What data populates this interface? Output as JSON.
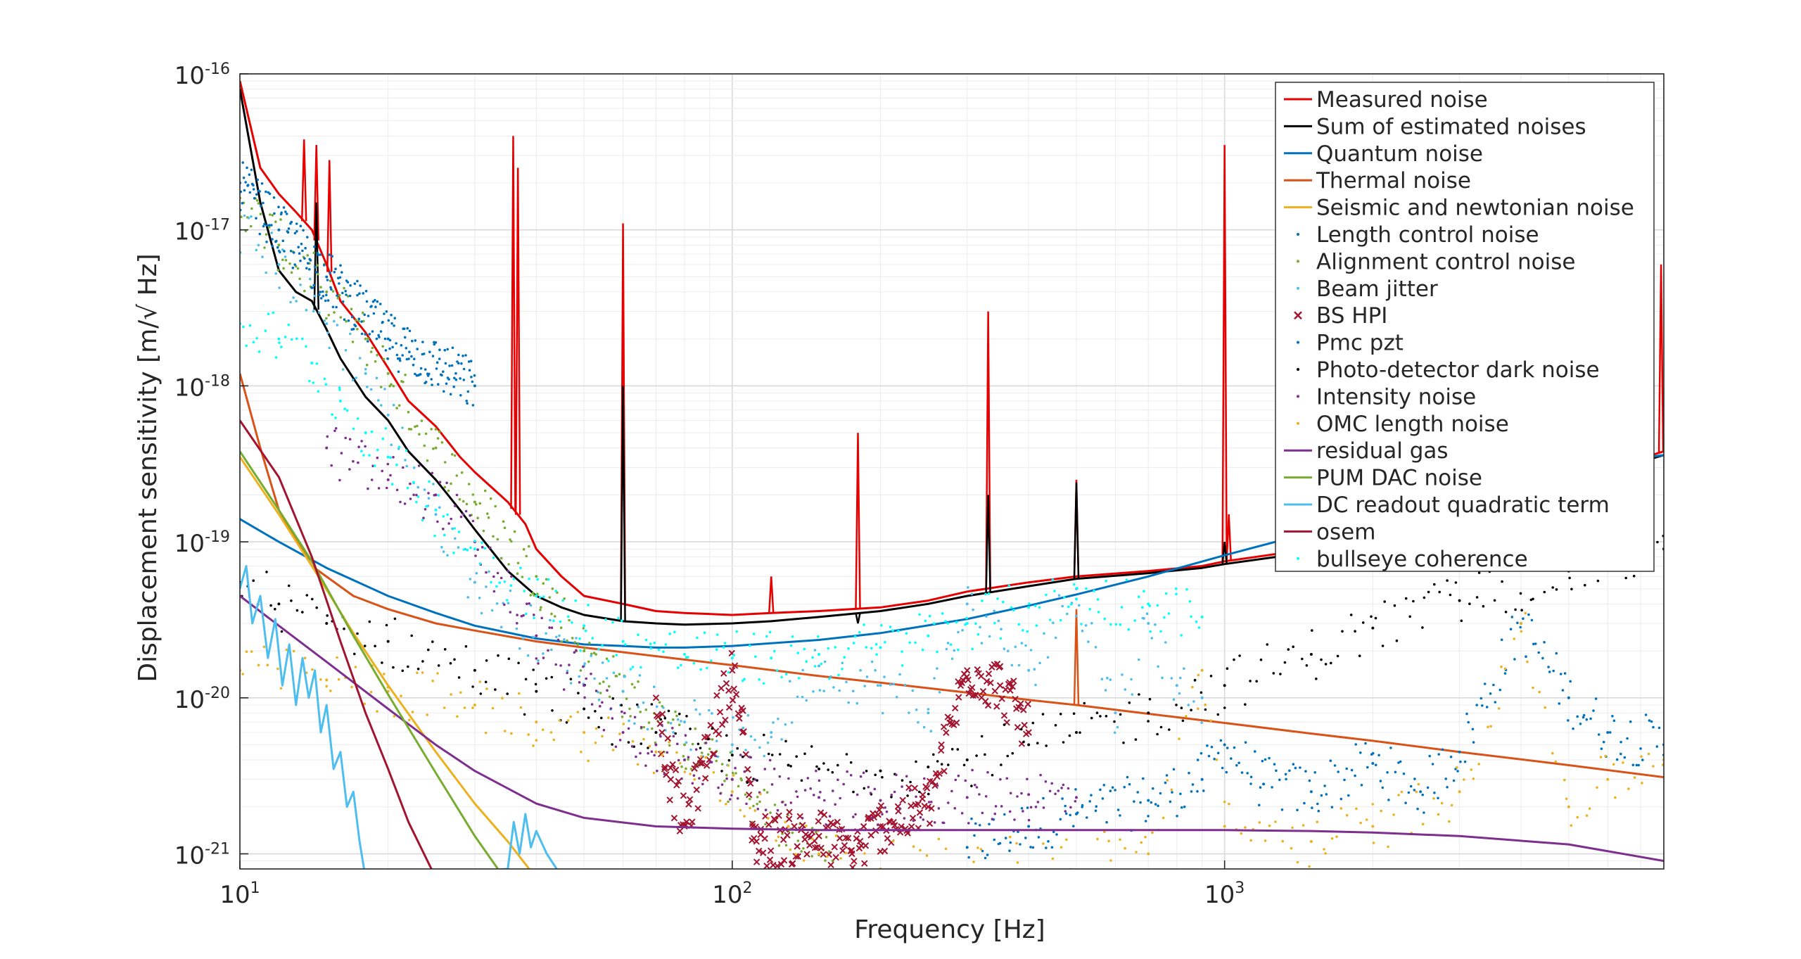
{
  "chart_data": {
    "type": "line",
    "title": "",
    "xlabel": "Frequency [Hz]",
    "ylabel": "Displacement sensitivity [m/√ Hz]",
    "xscale": "log",
    "yscale": "log",
    "xlim": [
      10,
      7800
    ],
    "ylim": [
      8e-22,
      1e-16
    ],
    "grid": true,
    "legend_position": "top-right",
    "x_ticks": [
      {
        "value": 10,
        "base": "10",
        "exp": "1"
      },
      {
        "value": 100,
        "base": "10",
        "exp": "2"
      },
      {
        "value": 1000,
        "base": "10",
        "exp": "3"
      }
    ],
    "y_ticks": [
      {
        "value": 1e-16,
        "base": "10",
        "exp": "-16"
      },
      {
        "value": 1e-17,
        "base": "10",
        "exp": "-17"
      },
      {
        "value": 1e-18,
        "base": "10",
        "exp": "-18"
      },
      {
        "value": 1e-19,
        "base": "10",
        "exp": "-19"
      },
      {
        "value": 1e-20,
        "base": "10",
        "exp": "-20"
      },
      {
        "value": 1e-21,
        "base": "10",
        "exp": "-21"
      }
    ],
    "series": [
      {
        "name": "Measured noise",
        "style": "line",
        "color": "#e60000",
        "x": [
          10,
          11,
          12,
          13,
          14,
          15,
          16,
          18,
          20,
          22,
          25,
          28,
          30,
          35,
          38,
          40,
          45,
          50,
          60,
          70,
          80,
          100,
          120,
          150,
          200,
          250,
          300,
          400,
          500,
          700,
          900,
          1000,
          1500,
          2000,
          3000,
          5000,
          7800
        ],
        "y": [
          9e-17,
          2.5e-17,
          1.7e-17,
          1.3e-17,
          1e-17,
          6e-18,
          3.5e-18,
          2.2e-18,
          1.3e-18,
          8e-19,
          5.5e-19,
          3.5e-19,
          2.8e-19,
          1.8e-19,
          1.3e-19,
          9e-20,
          6e-20,
          4.5e-20,
          4e-20,
          3.6e-20,
          3.5e-20,
          3.4e-20,
          3.5e-20,
          3.6e-20,
          3.8e-20,
          4.2e-20,
          4.8e-20,
          5.5e-20,
          6e-20,
          6.5e-20,
          7e-20,
          7.5e-20,
          9e-20,
          1.1e-19,
          1.6e-19,
          2.5e-19,
          3.8e-19
        ],
        "peaks": [
          [
            13.5,
            3.8e-17
          ],
          [
            14.3,
            3.5e-17
          ],
          [
            15.2,
            2.8e-17
          ],
          [
            35.9,
            4e-17
          ],
          [
            36.7,
            2.5e-17
          ],
          [
            60,
            1.1e-17
          ],
          [
            120,
            6e-20
          ],
          [
            180,
            5e-19
          ],
          [
            331,
            3e-18
          ],
          [
            500,
            2.5e-19
          ],
          [
            1000,
            3.5e-17
          ],
          [
            1020,
            1.5e-19
          ],
          [
            7700,
            6e-18
          ]
        ]
      },
      {
        "name": "Sum of estimated noises",
        "style": "line",
        "color": "#000000",
        "x": [
          10,
          11,
          12,
          13,
          14,
          15,
          16,
          18,
          20,
          22,
          25,
          28,
          30,
          35,
          40,
          45,
          50,
          60,
          70,
          80,
          100,
          120,
          150,
          200,
          250,
          300,
          400,
          500,
          700,
          900,
          1000,
          1500,
          2000,
          3000,
          5000,
          7800
        ],
        "y": [
          8e-17,
          1.5e-17,
          5.5e-18,
          4e-18,
          3.5e-18,
          2.3e-18,
          1.5e-18,
          8.5e-19,
          6e-19,
          3.8e-19,
          2.5e-19,
          1.6e-19,
          1.2e-19,
          6.5e-20,
          4.5e-20,
          3.8e-20,
          3.4e-20,
          3.1e-20,
          3e-20,
          2.95e-20,
          3e-20,
          3.1e-20,
          3.3e-20,
          3.6e-20,
          4e-20,
          4.5e-20,
          5.2e-20,
          5.8e-20,
          6.3e-20,
          6.8e-20,
          7.2e-20,
          8.6e-20,
          1.05e-19,
          1.5e-19,
          2.4e-19,
          3.6e-19
        ],
        "peaks": [
          [
            14.3,
            1.5e-17
          ],
          [
            60,
            1e-18
          ],
          [
            180,
            3e-20
          ],
          [
            331,
            2e-19
          ],
          [
            500,
            2.4e-19
          ],
          [
            1000,
            1e-19
          ]
        ]
      },
      {
        "name": "Quantum noise",
        "style": "line",
        "color": "#0072bd",
        "x": [
          10,
          12,
          15,
          20,
          25,
          30,
          40,
          50,
          60,
          70,
          80,
          100,
          150,
          200,
          300,
          400,
          500,
          700,
          1000,
          1500,
          2000,
          3000,
          5000,
          7800
        ],
        "y": [
          1.4e-19,
          1e-19,
          6.8e-20,
          4.5e-20,
          3.5e-20,
          2.9e-20,
          2.4e-20,
          2.2e-20,
          2.15e-20,
          2.1e-20,
          2.1e-20,
          2.15e-20,
          2.35e-20,
          2.6e-20,
          3.2e-20,
          3.9e-20,
          4.6e-20,
          6e-20,
          8.2e-20,
          1.15e-19,
          1.5e-19,
          2.1e-19,
          3e-19,
          3.6e-19
        ]
      },
      {
        "name": "Thermal noise",
        "style": "line",
        "color": "#d95319",
        "x": [
          10,
          11,
          12,
          14,
          17,
          20,
          25,
          30,
          40,
          50,
          70,
          100,
          150,
          200,
          300,
          400,
          500,
          700,
          1000,
          1500,
          2000,
          3000,
          5000,
          7800
        ],
        "y": [
          1.2e-18,
          4e-19,
          1.6e-19,
          7e-20,
          4.5e-20,
          3.7e-20,
          3e-20,
          2.7e-20,
          2.3e-20,
          2.1e-20,
          1.85e-20,
          1.62e-20,
          1.38e-20,
          1.25e-20,
          1.08e-20,
          9.7e-21,
          9e-21,
          7.9e-21,
          6.9e-21,
          5.9e-21,
          5.3e-21,
          4.5e-21,
          3.7e-21,
          3.1e-21
        ],
        "peaks": [
          [
            500,
            3.7e-20
          ]
        ]
      },
      {
        "name": "Seismic and newtonian noise",
        "style": "line",
        "color": "#edb120",
        "x": [
          10,
          12,
          14,
          17,
          20,
          25,
          30,
          35,
          40
        ],
        "y": [
          3.5e-19,
          1.5e-19,
          7e-20,
          2.6e-20,
          1.2e-20,
          4.5e-21,
          2.1e-21,
          1.2e-21,
          7e-22
        ]
      },
      {
        "name": "Length control noise",
        "style": "dots",
        "color": "#0072bd",
        "x": [
          300,
          400,
          500,
          700,
          900,
          1000,
          1200,
          1500,
          2000,
          2500,
          3000,
          4000,
          5000,
          6000,
          7800
        ],
        "y": [
          1.1e-21,
          1.5e-21,
          1.8e-21,
          2.2e-21,
          3e-21,
          5e-21,
          2.8e-21,
          2.5e-21,
          3.8e-21,
          2.5e-21,
          4.5e-21,
          3e-20,
          1e-20,
          6e-21,
          5e-21
        ]
      },
      {
        "name": "Alignment control noise",
        "style": "dots",
        "color": "#77ac30",
        "x": [
          10,
          12,
          15,
          18,
          20,
          25,
          30,
          40,
          50,
          60,
          80,
          100,
          130,
          160
        ],
        "y": [
          1.6e-17,
          8e-18,
          4e-18,
          2e-18,
          1.2e-18,
          4e-19,
          1.8e-19,
          6e-20,
          2e-20,
          1.1e-20,
          5e-21,
          3e-21,
          1.4e-21,
          9e-22
        ]
      },
      {
        "name": "Beam jitter",
        "style": "dots",
        "color": "#4dbeee",
        "x": [
          10,
          12,
          15,
          18,
          20,
          25,
          30,
          40,
          50,
          60,
          80,
          100,
          120,
          150,
          200,
          250,
          300,
          400,
          500,
          600,
          700,
          800,
          900
        ],
        "y": [
          1e-17,
          6e-18,
          2.5e-18,
          1.2e-18,
          6.5e-19,
          1.5e-19,
          5.5e-20,
          2.5e-20,
          1.6e-20,
          1.1e-20,
          7e-21,
          5e-21,
          6e-21,
          1.6e-20,
          1.2e-20,
          8e-21,
          4e-20,
          1.5e-20,
          5e-20,
          8e-21,
          3e-20,
          1.2e-20,
          1e-20
        ]
      },
      {
        "name": "BS HPI",
        "style": "x",
        "color": "#a2142f",
        "x": [
          70,
          72,
          75,
          80,
          100,
          105,
          108,
          110,
          112,
          150,
          175,
          200,
          250,
          300,
          350,
          400
        ],
        "y": [
          1e-20,
          6e-21,
          3e-21,
          1.5e-21,
          1.5e-20,
          6e-21,
          3e-21,
          1.5e-21,
          1.2e-21,
          1.3e-21,
          1e-21,
          1.5e-21,
          2e-21,
          1.5e-20,
          1.2e-20,
          6e-21
        ]
      },
      {
        "name": "Pmc pzt",
        "style": "dots",
        "color": "#0072bd",
        "x": [
          10,
          12,
          15,
          20,
          30
        ],
        "y": [
          2e-17,
          1e-17,
          5e-18,
          2e-18,
          1e-18
        ]
      },
      {
        "name": "Photo-detector dark noise",
        "style": "dots",
        "color": "#000000",
        "x": [
          10,
          12,
          15,
          20,
          30,
          40,
          50,
          70,
          100,
          130,
          150,
          200,
          250,
          300,
          400,
          500,
          700,
          1000,
          1500,
          2000,
          3000,
          5000,
          7800
        ],
        "y": [
          5.5e-20,
          4e-20,
          3e-20,
          2.3e-20,
          1.5e-20,
          1.1e-20,
          8.5e-21,
          6e-21,
          4.3e-21,
          3.7e-21,
          3.5e-21,
          3.4e-21,
          3.6e-21,
          4e-21,
          5e-21,
          6e-21,
          8e-21,
          1.2e-20,
          1.9e-20,
          2.8e-20,
          4.2e-20,
          6.5e-20,
          9e-20
        ]
      },
      {
        "name": "Intensity noise",
        "style": "dots",
        "color": "#7e2f8e",
        "x": [
          15,
          20,
          25,
          30,
          40,
          50,
          60,
          70,
          80,
          100,
          150,
          200,
          300,
          400,
          500
        ],
        "y": [
          4e-19,
          2.5e-19,
          2e-19,
          1e-19,
          2.5e-20,
          1.2e-20,
          6e-21,
          5e-21,
          4e-21,
          3e-21,
          2.3e-21,
          2.2e-21,
          2.3e-21,
          2.4e-21,
          2.3e-21
        ]
      },
      {
        "name": "OMC length noise",
        "style": "dots",
        "color": "#edb120",
        "x": [
          10,
          15,
          20,
          30,
          40,
          50,
          70,
          100,
          130,
          150,
          200,
          700,
          900,
          1000,
          1500,
          2000,
          3000,
          4000,
          5000,
          6000,
          7800
        ],
        "y": [
          1.5e-20,
          1.3e-20,
          1.1e-20,
          9e-21,
          7e-21,
          6e-21,
          4.5e-21,
          2.5e-21,
          1.5e-21,
          1e-21,
          8e-22,
          1e-21,
          1.5e-20,
          1.5e-21,
          1.2e-21,
          1.5e-21,
          2.5e-21,
          3e-20,
          2e-21,
          3e-21,
          4e-21
        ]
      },
      {
        "name": "residual gas",
        "style": "line",
        "color": "#7e2f8e",
        "x": [
          10,
          12,
          15,
          20,
          25,
          30,
          40,
          50,
          70,
          100,
          150,
          200,
          300,
          500,
          700,
          1000,
          1500,
          2000,
          3000,
          5000,
          7800
        ],
        "y": [
          4.5e-20,
          2.9e-20,
          1.7e-20,
          8.5e-21,
          5e-21,
          3.4e-21,
          2.1e-21,
          1.7e-21,
          1.5e-21,
          1.45e-21,
          1.42e-21,
          1.42e-21,
          1.42e-21,
          1.42e-21,
          1.42e-21,
          1.42e-21,
          1.4e-21,
          1.37e-21,
          1.3e-21,
          1.15e-21,
          9e-22
        ]
      },
      {
        "name": "PUM DAC noise",
        "style": "line",
        "color": "#77ac30",
        "x": [
          10,
          12,
          14,
          17,
          20,
          25,
          30,
          35
        ],
        "y": [
          3.8e-19,
          1.6e-19,
          7.5e-20,
          2.5e-20,
          1.05e-20,
          3.3e-21,
          1.3e-21,
          6.5e-22
        ]
      },
      {
        "name": "DC readout quadratic term",
        "style": "line",
        "color": "#4dbeee",
        "x": [
          10,
          10.3,
          10.6,
          11,
          11.4,
          11.8,
          12.2,
          12.6,
          13,
          13.4,
          13.8,
          14.2,
          14.6,
          15,
          15.5,
          16,
          16.5,
          17,
          17.5,
          18,
          35,
          36,
          37,
          38,
          39,
          40,
          42,
          44
        ],
        "y": [
          5e-20,
          7e-20,
          3e-20,
          4.5e-20,
          1.8e-20,
          3.2e-20,
          1.2e-20,
          2.2e-20,
          9e-21,
          1.8e-20,
          1e-20,
          1.5e-20,
          6e-21,
          9e-21,
          3.5e-21,
          4.5e-21,
          2e-21,
          2.5e-21,
          1.2e-21,
          7e-22,
          8e-22,
          1.6e-21,
          1e-21,
          1.8e-21,
          1.1e-21,
          1.4e-21,
          1e-21,
          8e-22
        ]
      },
      {
        "name": "osem",
        "style": "line",
        "color": "#a2142f",
        "x": [
          10,
          12,
          14,
          16,
          18,
          20,
          22,
          25
        ],
        "y": [
          6e-19,
          2.6e-19,
          8e-20,
          2.3e-20,
          8e-21,
          3.5e-21,
          1.6e-21,
          7e-22
        ]
      },
      {
        "name": "bullseye coherence",
        "style": "dots",
        "color": "#00ffff",
        "x": [
          10,
          12,
          14,
          16,
          18,
          20,
          25,
          30,
          40,
          50,
          60,
          80,
          100,
          120,
          150,
          200,
          250,
          300,
          400,
          500,
          700,
          900
        ],
        "y": [
          2.5e-18,
          2e-18,
          1.4e-18,
          8e-19,
          5e-19,
          3.5e-19,
          1.6e-19,
          9e-20,
          4.5e-20,
          2.9e-20,
          2.3e-20,
          1.9e-20,
          1.8e-20,
          1.8e-20,
          1.9e-20,
          2.1e-20,
          2.5e-20,
          3e-20,
          3.8e-20,
          4.3e-20,
          4e-20,
          3.3e-20
        ]
      }
    ]
  }
}
